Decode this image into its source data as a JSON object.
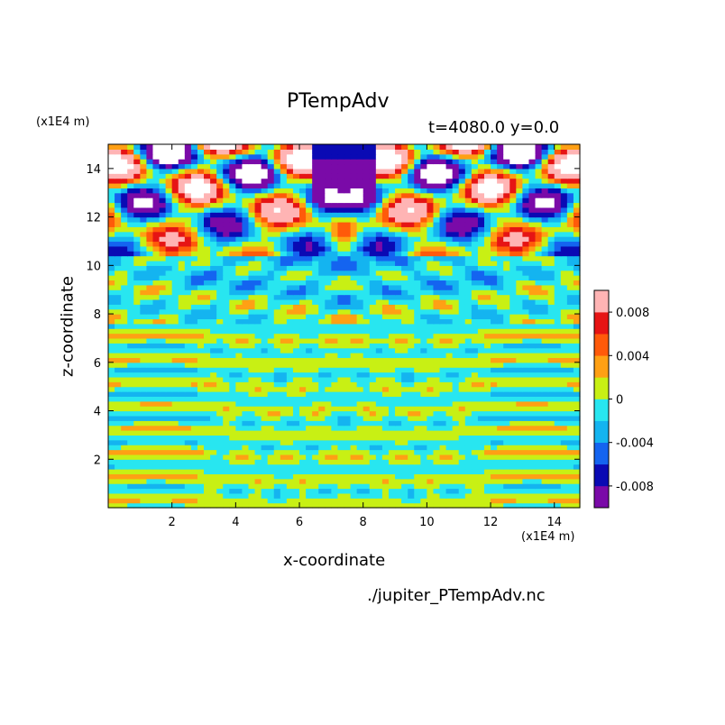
{
  "chart_data": {
    "type": "heatmap",
    "title": "PTempAdv",
    "subtitle": "t=4080.0 y=0.0",
    "xlabel": "x-coordinate",
    "ylabel": "z-coordinate",
    "x_unit": "(x1E4 m)",
    "y_unit": "(x1E4 m)",
    "xlim": [
      0,
      14.8
    ],
    "ylim": [
      0,
      15
    ],
    "x_ticks": [
      2,
      4,
      6,
      8,
      10,
      12,
      14
    ],
    "y_ticks": [
      2,
      4,
      6,
      8,
      10,
      12,
      14
    ],
    "colorbar": {
      "levels": [
        -0.01,
        -0.008,
        -0.006,
        -0.004,
        -0.002,
        0,
        0.002,
        0.004,
        0.006,
        0.008,
        0.01
      ],
      "colors": [
        "#7a0aa8",
        "#0a0ab4",
        "#1464f0",
        "#14b4f0",
        "#28e6f0",
        "#c8f014",
        "#ffa014",
        "#ff5a0a",
        "#e61414",
        "#ffb4b4"
      ],
      "tick_labels": [
        "-0.008",
        "-0.004",
        "0",
        "0.004",
        "0.008"
      ],
      "tick_values": [
        -0.008,
        -0.004,
        0,
        0.004,
        0.008
      ]
    },
    "description": "Potential temperature advection field at t=4080.0, y=0.0; symmetric about x=7.4, strong positive/negative alternating lobes near z=11-15, horizontal banded structure of small values (mostly -0.002 to 0.002) below z=9."
  },
  "footer": {
    "filename": "./jupiter_PTempAdv.nc"
  }
}
